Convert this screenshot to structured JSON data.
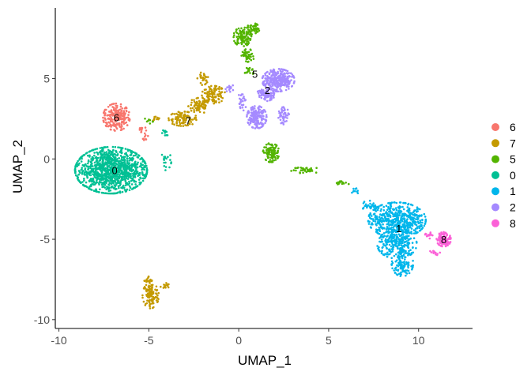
{
  "chart_data": {
    "type": "scatter",
    "xlabel": "UMAP_1",
    "ylabel": "UMAP_2",
    "xlim": [
      -10.2,
      13
    ],
    "ylim": [
      -10.55,
      9.4
    ],
    "x_ticks": [
      -10,
      -5,
      0,
      5,
      10
    ],
    "x_tick_labels": [
      "-10",
      "-5",
      "0",
      "5",
      "10"
    ],
    "y_ticks": [
      -10,
      -5,
      0,
      5
    ],
    "y_tick_labels": [
      "-10",
      "-5",
      "0",
      "5"
    ],
    "grid": false,
    "legend_position": "right",
    "legend": [
      {
        "label": "6",
        "color": "#F8766D"
      },
      {
        "label": "7",
        "color": "#C49A00"
      },
      {
        "label": "5",
        "color": "#53B400"
      },
      {
        "label": "0",
        "color": "#00C094"
      },
      {
        "label": "1",
        "color": "#00B6EB"
      },
      {
        "label": "2",
        "color": "#A58AFF"
      },
      {
        "label": "8",
        "color": "#FB61D7"
      }
    ],
    "series": [
      {
        "name": "6",
        "color": "#F8766D",
        "label_pos": [
          -6.8,
          2.6
        ],
        "blobs": [
          {
            "cx": -6.8,
            "cy": 2.6,
            "rx": 0.75,
            "ry": 0.85,
            "n": 220
          },
          {
            "cx": -5.4,
            "cy": 1.8,
            "rx": 0.25,
            "ry": 0.3,
            "n": 12
          },
          {
            "cx": -5.2,
            "cy": 1.3,
            "rx": 0.2,
            "ry": 0.2,
            "n": 8
          }
        ]
      },
      {
        "name": "7",
        "color": "#C49A00",
        "label_pos": [
          -2.8,
          2.4
        ],
        "blobs": [
          {
            "cx": -3.1,
            "cy": 2.5,
            "rx": 0.8,
            "ry": 0.45,
            "n": 90
          },
          {
            "cx": -2.2,
            "cy": 3.3,
            "rx": 0.6,
            "ry": 0.5,
            "n": 80
          },
          {
            "cx": -1.4,
            "cy": 4.0,
            "rx": 0.65,
            "ry": 0.55,
            "n": 110
          },
          {
            "cx": -2.0,
            "cy": 5.0,
            "rx": 0.3,
            "ry": 0.4,
            "n": 25
          },
          {
            "cx": -4.6,
            "cy": 2.5,
            "rx": 0.3,
            "ry": 0.15,
            "n": 10
          },
          {
            "cx": -4.9,
            "cy": -8.5,
            "rx": 0.45,
            "ry": 0.8,
            "n": 110
          },
          {
            "cx": -5.0,
            "cy": -7.6,
            "rx": 0.25,
            "ry": 0.3,
            "n": 20
          },
          {
            "cx": -4.1,
            "cy": -7.9,
            "rx": 0.25,
            "ry": 0.2,
            "n": 15
          }
        ]
      },
      {
        "name": "5",
        "color": "#53B400",
        "label_pos": [
          0.9,
          5.3
        ],
        "blobs": [
          {
            "cx": 0.2,
            "cy": 7.6,
            "rx": 0.5,
            "ry": 0.6,
            "n": 110
          },
          {
            "cx": 0.8,
            "cy": 8.1,
            "rx": 0.35,
            "ry": 0.35,
            "n": 45
          },
          {
            "cx": 0.5,
            "cy": 6.4,
            "rx": 0.35,
            "ry": 0.45,
            "n": 45
          },
          {
            "cx": 0.6,
            "cy": 5.5,
            "rx": 0.3,
            "ry": 0.3,
            "n": 20
          },
          {
            "cx": 1.8,
            "cy": 0.4,
            "rx": 0.45,
            "ry": 0.6,
            "n": 110
          },
          {
            "cx": 3.8,
            "cy": -0.7,
            "rx": 0.9,
            "ry": 0.2,
            "n": 35
          },
          {
            "cx": 5.8,
            "cy": -1.5,
            "rx": 0.35,
            "ry": 0.15,
            "n": 15
          },
          {
            "cx": -5.0,
            "cy": 2.4,
            "rx": 0.25,
            "ry": 0.2,
            "n": 8
          }
        ]
      },
      {
        "name": "0",
        "color": "#00C094",
        "label_pos": [
          -6.9,
          -0.7
        ],
        "blobs": [
          {
            "cx": -7.1,
            "cy": -0.7,
            "rx": 2.0,
            "ry": 1.45,
            "n": 1100
          },
          {
            "cx": -4.1,
            "cy": -0.1,
            "rx": 0.35,
            "ry": 0.6,
            "n": 18
          },
          {
            "cx": -4.2,
            "cy": 1.6,
            "rx": 0.35,
            "ry": 0.3,
            "n": 10
          }
        ]
      },
      {
        "name": "1",
        "color": "#00B6EB",
        "label_pos": [
          8.9,
          -4.3
        ],
        "blobs": [
          {
            "cx": 8.8,
            "cy": -3.8,
            "rx": 1.6,
            "ry": 1.1,
            "n": 520
          },
          {
            "cx": 8.8,
            "cy": -5.3,
            "rx": 1.1,
            "ry": 0.9,
            "n": 240
          },
          {
            "cx": 9.1,
            "cy": -6.5,
            "rx": 0.6,
            "ry": 0.8,
            "n": 110
          },
          {
            "cx": 7.3,
            "cy": -2.9,
            "rx": 0.5,
            "ry": 0.3,
            "n": 25
          },
          {
            "cx": 6.5,
            "cy": -2.0,
            "rx": 0.3,
            "ry": 0.2,
            "n": 10
          }
        ]
      },
      {
        "name": "2",
        "color": "#A58AFF",
        "label_pos": [
          1.6,
          4.3
        ],
        "blobs": [
          {
            "cx": 2.2,
            "cy": 4.9,
            "rx": 0.9,
            "ry": 0.7,
            "n": 300
          },
          {
            "cx": 1.5,
            "cy": 4.0,
            "rx": 0.5,
            "ry": 0.4,
            "n": 80
          },
          {
            "cx": 1.0,
            "cy": 2.6,
            "rx": 0.55,
            "ry": 0.7,
            "n": 170
          },
          {
            "cx": 2.5,
            "cy": 2.7,
            "rx": 0.3,
            "ry": 0.55,
            "n": 50
          },
          {
            "cx": 0.2,
            "cy": 3.6,
            "rx": 0.25,
            "ry": 0.6,
            "n": 25
          },
          {
            "cx": -0.5,
            "cy": 4.4,
            "rx": 0.25,
            "ry": 0.25,
            "n": 12
          }
        ]
      },
      {
        "name": "8",
        "color": "#FB61D7",
        "label_pos": [
          11.4,
          -5.0
        ],
        "blobs": [
          {
            "cx": 11.4,
            "cy": -5.0,
            "rx": 0.4,
            "ry": 0.45,
            "n": 110
          },
          {
            "cx": 10.6,
            "cy": -4.7,
            "rx": 0.25,
            "ry": 0.25,
            "n": 15
          },
          {
            "cx": 10.9,
            "cy": -5.8,
            "rx": 0.3,
            "ry": 0.2,
            "n": 12
          }
        ]
      }
    ]
  }
}
